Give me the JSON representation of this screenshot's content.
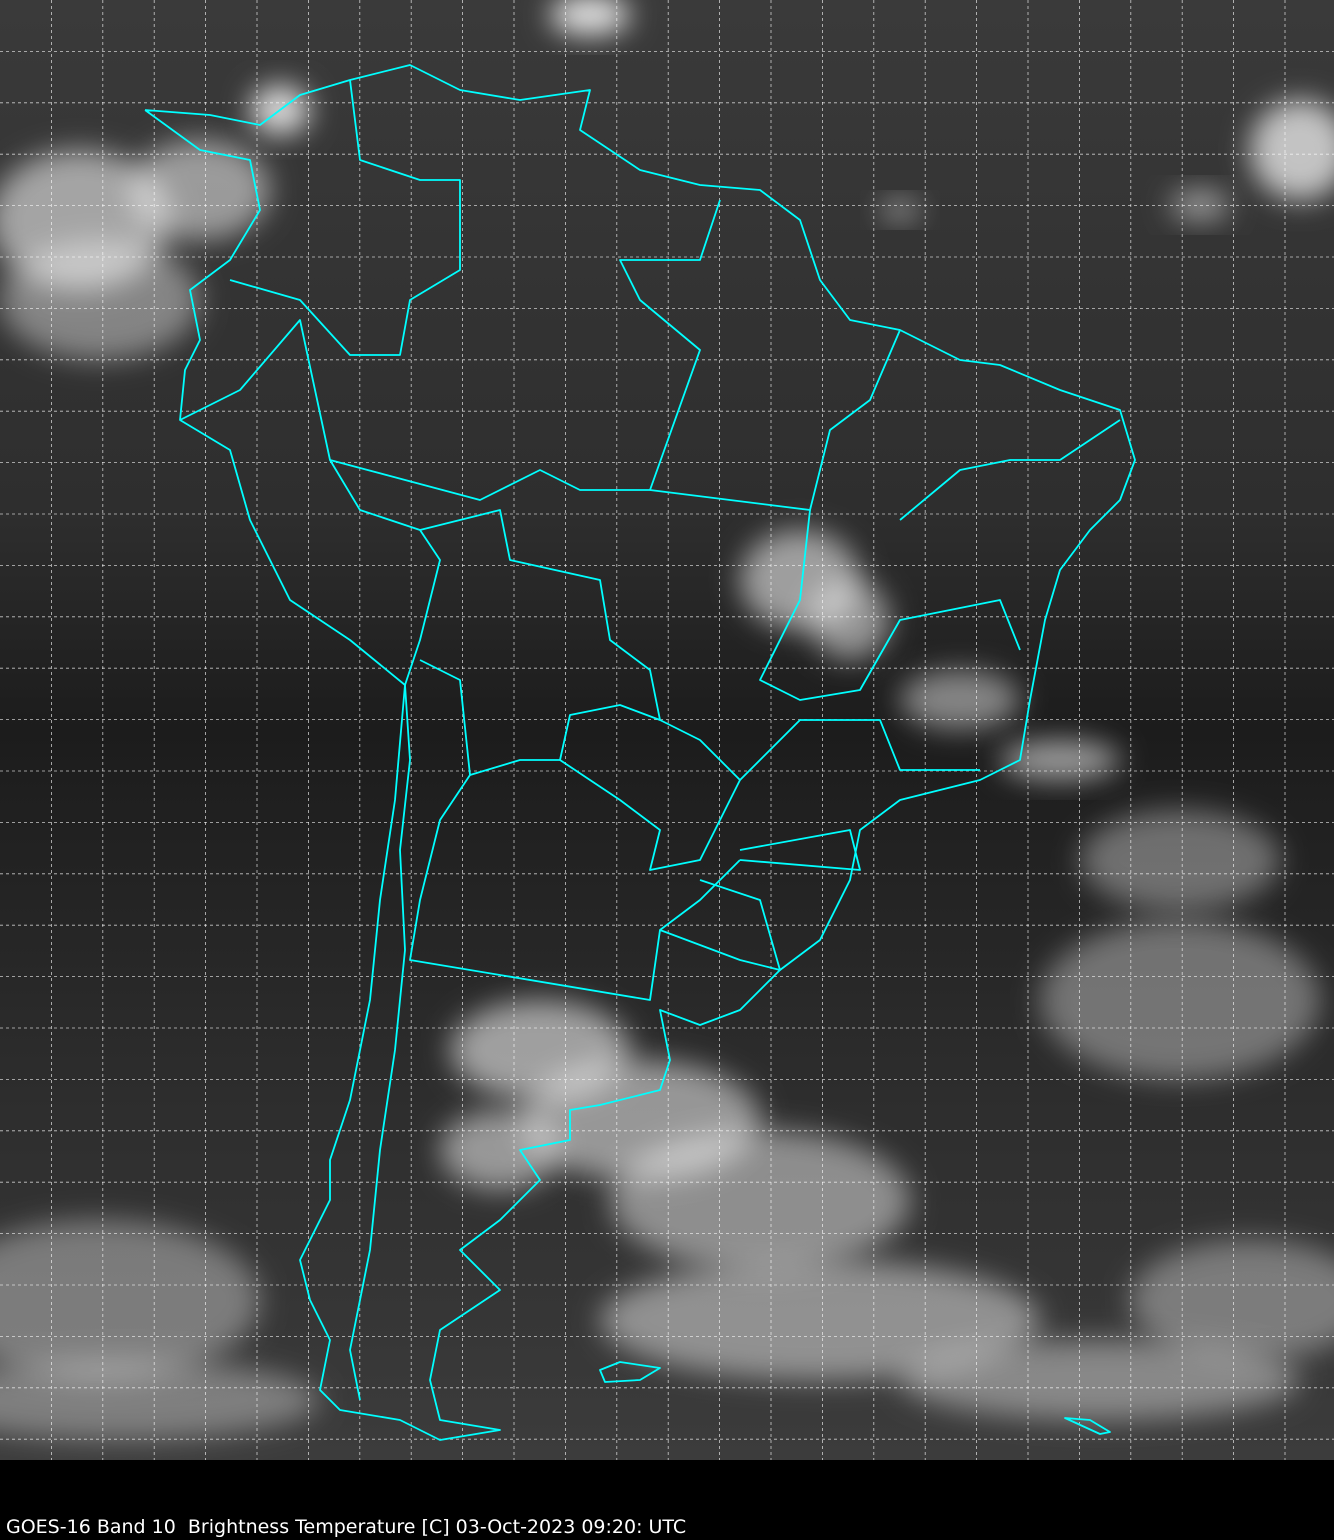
{
  "caption": "GOES-16 Band 10  Brightness Temperature [C] 03-Oct-2023 09:20: UTC",
  "colors": {
    "border_lines": "#00ffff",
    "graticule": "#ffffff",
    "background": "#000000"
  },
  "map": {
    "satellite": "GOES-16",
    "band": "Band 10",
    "quantity": "Brightness Temperature [C]",
    "region": "South America",
    "colormap": "grayscale",
    "graticule": "dashed",
    "overlay": "country and state borders"
  }
}
